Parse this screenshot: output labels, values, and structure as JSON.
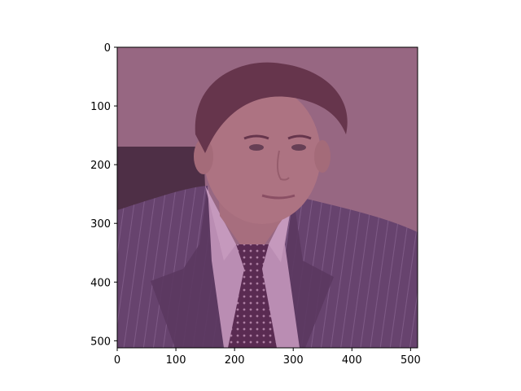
{
  "figure": {
    "image_description_icon": "portrait-photo",
    "overlay_color": "#8a4f7d",
    "x_ticks": [
      {
        "label": "0",
        "value": 0
      },
      {
        "label": "100",
        "value": 100
      },
      {
        "label": "200",
        "value": 200
      },
      {
        "label": "300",
        "value": 300
      },
      {
        "label": "400",
        "value": 400
      },
      {
        "label": "500",
        "value": 500
      }
    ],
    "y_ticks": [
      {
        "label": "0",
        "value": 0
      },
      {
        "label": "100",
        "value": 100
      },
      {
        "label": "200",
        "value": 200
      },
      {
        "label": "300",
        "value": 300
      },
      {
        "label": "400",
        "value": 400
      },
      {
        "label": "500",
        "value": 500
      }
    ],
    "x_range": [
      0,
      512
    ],
    "y_range": [
      0,
      512
    ],
    "y_inverted": true
  }
}
